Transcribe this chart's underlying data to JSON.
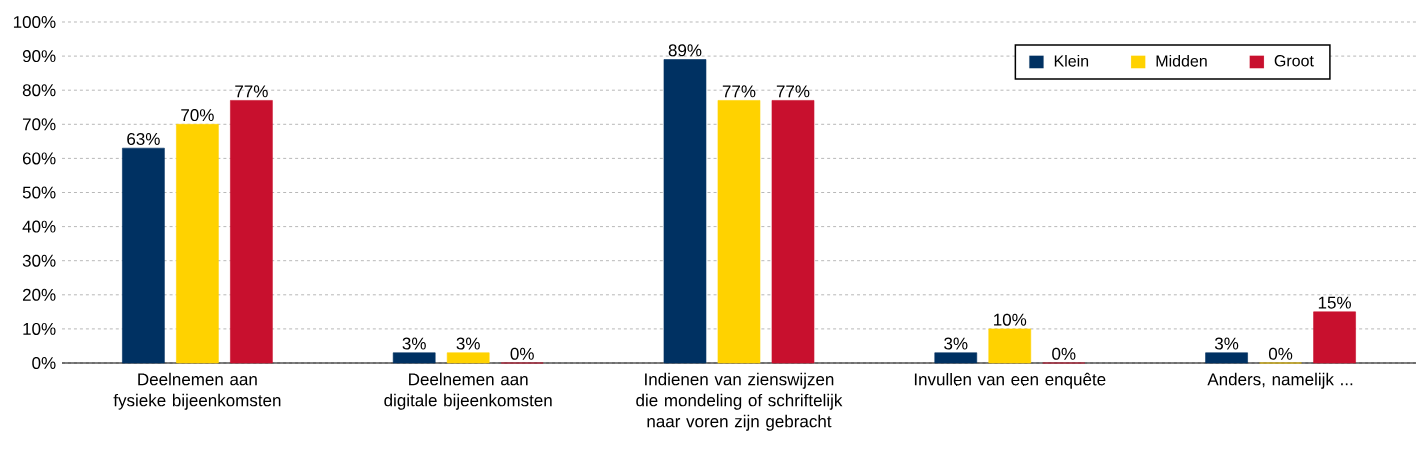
{
  "chart_data": {
    "type": "bar",
    "categories": [
      "Deelnemen aan fysieke bijeenkomsten",
      "Deelnemen aan digitale bijeenkomsten",
      "Indienen van zienswijzen die mondeling of schriftelijk naar voren zijn gebracht",
      "Invullen van een enquête",
      "Anders, namelijk ..."
    ],
    "series": [
      {
        "name": "Klein",
        "color": "#003162",
        "values": [
          63,
          3,
          89,
          3,
          3
        ],
        "value_labels": [
          "63%",
          "3%",
          "89%",
          "3%",
          "3%"
        ]
      },
      {
        "name": "Midden",
        "color": "#ffd200",
        "values": [
          70,
          3,
          77,
          10,
          0
        ],
        "value_labels": [
          "70%",
          "3%",
          "77%",
          "10%",
          "0%"
        ]
      },
      {
        "name": "Groot",
        "color": "#c8102e",
        "values": [
          77,
          0,
          77,
          0,
          15
        ],
        "value_labels": [
          "77%",
          "0%",
          "77%",
          "0%",
          "15%"
        ]
      }
    ],
    "ylim": [
      0,
      100
    ],
    "yticks": [
      {
        "value": 0,
        "label": "0%"
      },
      {
        "value": 10,
        "label": "10%"
      },
      {
        "value": 20,
        "label": "20%"
      },
      {
        "value": 30,
        "label": "30%"
      },
      {
        "value": 40,
        "label": "40%"
      },
      {
        "value": 50,
        "label": "50%"
      },
      {
        "value": 60,
        "label": "60%"
      },
      {
        "value": 70,
        "label": "70%"
      },
      {
        "value": 80,
        "label": "80%"
      },
      {
        "value": 90,
        "label": "90%"
      },
      {
        "value": 100,
        "label": "100%"
      }
    ],
    "grid": "y",
    "legend": "top right"
  }
}
